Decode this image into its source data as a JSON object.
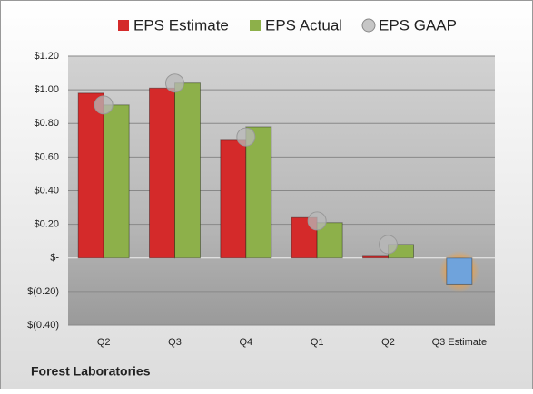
{
  "chart_data": {
    "type": "bar",
    "company": "Forest Laboratories",
    "categories": [
      "Q2",
      "Q3",
      "Q4",
      "Q1",
      "Q2",
      "Q3 Estimate"
    ],
    "series": [
      {
        "name": "EPS Estimate",
        "color": "#d42a2a",
        "forecast_color": "#6fa3dc",
        "values": [
          0.98,
          1.01,
          0.7,
          0.24,
          0.01,
          -0.16
        ]
      },
      {
        "name": "EPS Actual",
        "color": "#8db04a",
        "values": [
          0.91,
          1.04,
          0.78,
          0.21,
          0.08,
          null
        ]
      },
      {
        "name": "EPS GAAP",
        "type": "scatter",
        "color": "#b8b8b8",
        "values": [
          0.91,
          1.04,
          0.72,
          0.22,
          0.08,
          null
        ]
      }
    ],
    "ylim": [
      -0.4,
      1.2
    ],
    "yticks": [
      {
        "value": -0.4,
        "label": "$(0.40)"
      },
      {
        "value": -0.2,
        "label": "$(0.20)"
      },
      {
        "value": 0,
        "label": "$-"
      },
      {
        "value": 0.2,
        "label": "$0.20"
      },
      {
        "value": 0.4,
        "label": "$0.40"
      },
      {
        "value": 0.6,
        "label": "$0.60"
      },
      {
        "value": 0.8,
        "label": "$0.80"
      },
      {
        "value": 1.0,
        "label": "$1.00"
      },
      {
        "value": 1.2,
        "label": "$1.20"
      }
    ],
    "grid": true
  }
}
